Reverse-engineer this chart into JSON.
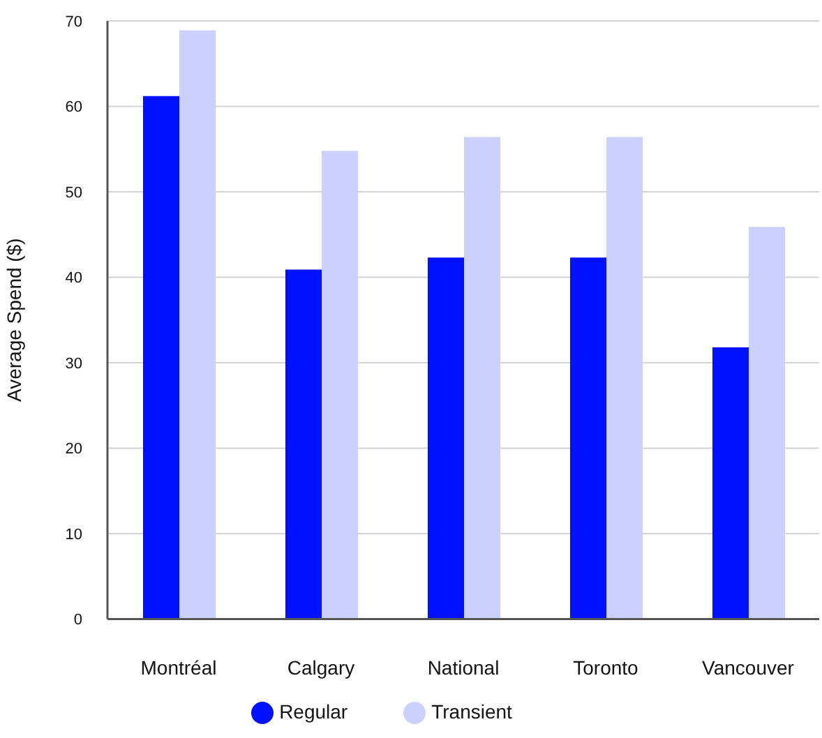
{
  "chart_data": {
    "type": "bar",
    "ylabel": "Average Spend ($)",
    "categories": [
      "Montréal",
      "Calgary",
      "National",
      "Toronto",
      "Vancouver"
    ],
    "series": [
      {
        "name": "Regular",
        "color": "#0011ff",
        "values": [
          61.2,
          40.9,
          42.3,
          42.3,
          31.8
        ]
      },
      {
        "name": "Transient",
        "color": "#ccd0ff",
        "values": [
          68.9,
          54.8,
          56.4,
          56.4,
          45.9
        ]
      }
    ],
    "ylim": [
      0,
      70
    ],
    "yticks": [
      0,
      10,
      20,
      30,
      40,
      50,
      60,
      70
    ],
    "grid": "y",
    "legend": "bottom"
  }
}
